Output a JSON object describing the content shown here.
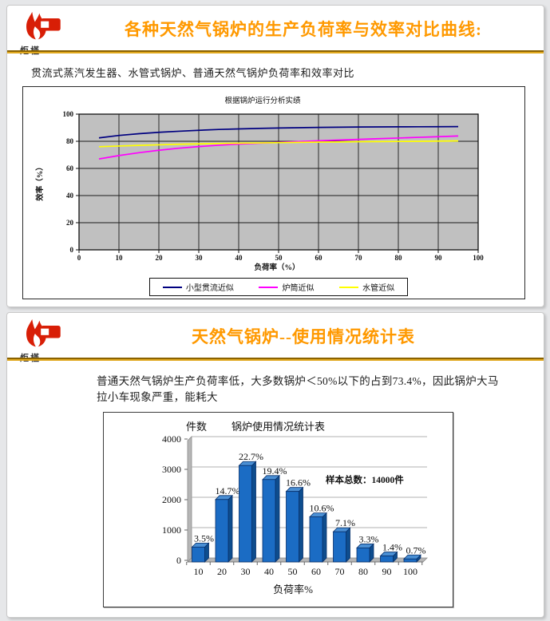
{
  "page": {
    "background": "#e6e7e9",
    "accent_title_color": "#FF9900",
    "rule_color": "#e0a81e"
  },
  "slide1": {
    "logo": {
      "brand_text": "炬槿",
      "flame_color": "#d81e06"
    },
    "title": "各种天然气锅炉的生产负荷率与效率对比曲线:",
    "subtitle": "贯流式蒸汽发生器、水管式锅炉、普通天然气锅炉负荷率和效率对比"
  },
  "slide2": {
    "logo": {
      "brand_text": "炬槿",
      "flame_color": "#d81e06"
    },
    "title": "天然气锅炉--使用情况统计表",
    "body_text": "普通天然气锅炉生产负荷率低，大多数锅炉＜50%以下的占到73.4%，因此锅炉大马拉小车现象严重，能耗大"
  },
  "chart_data": [
    {
      "type": "line",
      "title": "根据锅炉运行分析实绩",
      "xlabel": "负荷率（%）",
      "ylabel": "效率（%）",
      "xlim": [
        0,
        100
      ],
      "ylim": [
        0,
        100
      ],
      "x_ticks": [
        0,
        10,
        20,
        30,
        40,
        50,
        60,
        70,
        80,
        90,
        100
      ],
      "y_ticks": [
        0,
        20,
        40,
        60,
        80,
        100
      ],
      "grid": true,
      "plot_bg": "#c0c0c0",
      "legend_position": "bottom",
      "x": [
        5,
        10,
        15,
        20,
        25,
        30,
        35,
        40,
        45,
        50,
        55,
        60,
        65,
        70,
        75,
        80,
        85,
        90,
        95
      ],
      "series": [
        {
          "name": "小型贯流近似",
          "color": "#000080",
          "values": [
            82.5,
            84.3,
            85.6,
            86.6,
            87.4,
            88.1,
            88.7,
            89.1,
            89.5,
            89.8,
            90.0,
            90.2,
            90.35,
            90.5,
            90.6,
            90.65,
            90.7,
            90.75,
            90.8
          ]
        },
        {
          "name": "炉筒近似",
          "color": "#FF00FF",
          "values": [
            67,
            69.5,
            71.6,
            73.4,
            74.9,
            76.1,
            77.1,
            77.9,
            78.6,
            79.2,
            79.8,
            80.4,
            80.9,
            81.4,
            81.9,
            82.4,
            82.9,
            83.4,
            83.9
          ]
        },
        {
          "name": "水管近似",
          "color": "#FFFF00",
          "values": [
            76,
            76.5,
            77,
            77.4,
            77.8,
            78.1,
            78.4,
            78.6,
            78.8,
            79.0,
            79.2,
            79.4,
            79.5,
            79.7,
            79.8,
            79.9,
            80.0,
            80.15,
            80.3
          ]
        }
      ]
    },
    {
      "type": "bar",
      "style": "3d",
      "title": "锅炉使用情况统计表",
      "xlabel": "负荷率%",
      "ylabel": "件数",
      "categories": [
        10,
        20,
        30,
        40,
        50,
        60,
        70,
        80,
        90,
        100
      ],
      "values": [
        490,
        2058,
        3178,
        2716,
        2324,
        1484,
        994,
        462,
        196,
        98
      ],
      "labels": [
        "3.5%",
        "14.7%",
        "22.7%",
        "19.4%",
        "16.6%",
        "10.6%",
        "7.1%",
        "3.3%",
        "1.4%",
        "0.7%"
      ],
      "total_samples": 14000,
      "annotation": "样本总数：14000件",
      "annotation_color": "#FF0000",
      "ylim": [
        0,
        4000
      ],
      "y_ticks": [
        0,
        1000,
        2000,
        3000,
        4000
      ],
      "bar_color": "#1b6cc4",
      "bar_top_color": "#4a8fd4",
      "bar_side_color": "#0e4d8e",
      "bar_outline": "#08306b"
    }
  ]
}
